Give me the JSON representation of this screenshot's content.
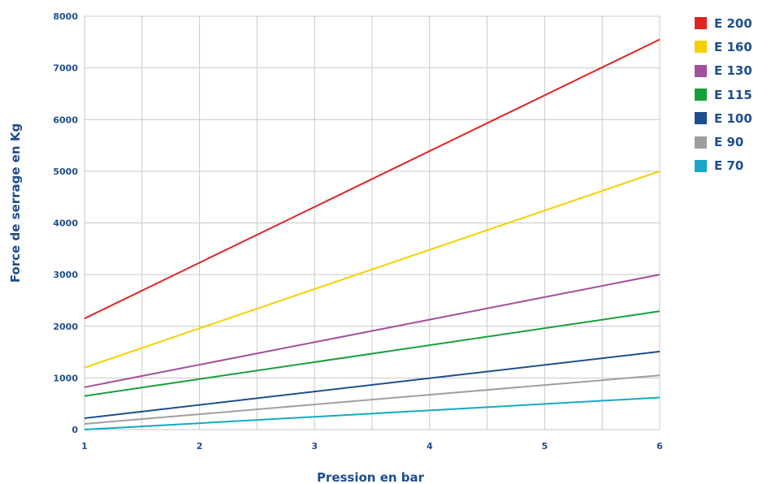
{
  "chart_data": {
    "type": "line",
    "xlabel": "Pression en bar",
    "ylabel": "Force de serrage en Kg",
    "xlim": [
      1,
      6
    ],
    "ylim": [
      0,
      8000
    ],
    "x_ticks": [
      "1",
      "2",
      "3",
      "4",
      "5",
      "6"
    ],
    "y_ticks": [
      "0",
      "1000",
      "2000",
      "3000",
      "4000",
      "5000",
      "6000",
      "7000",
      "8000"
    ],
    "grid": true,
    "legend_position": "right",
    "x": [
      1,
      6
    ],
    "series": [
      {
        "name": "E 200",
        "color": "#e02424",
        "values": [
          2150,
          7550
        ]
      },
      {
        "name": "E 160",
        "color": "#f5d000",
        "values": [
          1200,
          5000
        ]
      },
      {
        "name": "E 130",
        "color": "#a3509a",
        "values": [
          820,
          3000
        ]
      },
      {
        "name": "E 115",
        "color": "#16a03c",
        "values": [
          650,
          2290
        ]
      },
      {
        "name": "E 100",
        "color": "#1f4e8c",
        "values": [
          220,
          1510
        ]
      },
      {
        "name": "E 90",
        "color": "#9e9e9e",
        "values": [
          110,
          1050
        ]
      },
      {
        "name": "E 70",
        "color": "#15a8c4",
        "values": [
          0,
          620
        ]
      }
    ]
  }
}
